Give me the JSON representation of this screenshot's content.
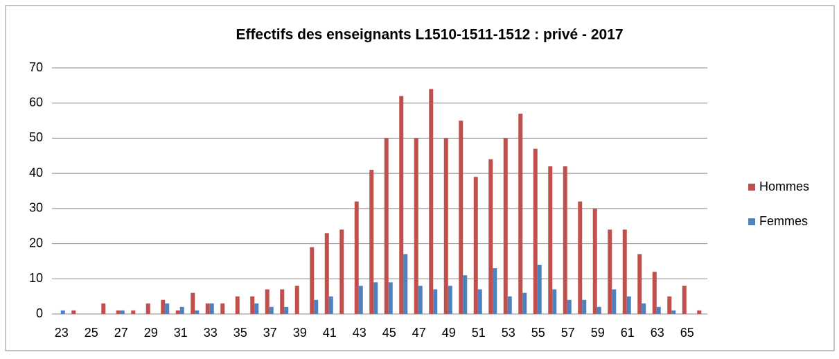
{
  "chart_data": {
    "type": "bar",
    "title": "Effectifs des enseignants L1510-1511-1512 : privé - 2017",
    "categories": [
      23,
      null,
      25,
      null,
      27,
      null,
      29,
      null,
      31,
      null,
      33,
      null,
      35,
      null,
      37,
      null,
      39,
      null,
      41,
      null,
      43,
      null,
      45,
      null,
      47,
      null,
      49,
      null,
      51,
      null,
      53,
      null,
      55,
      null,
      57,
      null,
      59,
      null,
      61,
      null,
      63,
      null,
      65,
      null
    ],
    "series": [
      {
        "name": "Hommes",
        "color": "#c0504d",
        "values": [
          0,
          1,
          0,
          3,
          1,
          1,
          3,
          4,
          1,
          6,
          3,
          3,
          5,
          5,
          7,
          7,
          8,
          19,
          23,
          24,
          32,
          41,
          50,
          62,
          50,
          64,
          50,
          55,
          39,
          44,
          50,
          57,
          47,
          42,
          42,
          32,
          30,
          24,
          24,
          17,
          12,
          5,
          8,
          1
        ]
      },
      {
        "name": "Femmes",
        "color": "#4f81bd",
        "values": [
          1,
          0,
          0,
          0,
          1,
          0,
          0,
          3,
          2,
          1,
          3,
          0,
          0,
          3,
          2,
          2,
          0,
          4,
          5,
          0,
          8,
          9,
          9,
          17,
          8,
          7,
          8,
          11,
          7,
          13,
          5,
          6,
          14,
          7,
          4,
          4,
          2,
          7,
          5,
          3,
          2,
          1,
          0,
          0
        ]
      }
    ],
    "ylim": [
      0,
      70
    ],
    "yticks": [
      0,
      10,
      20,
      30,
      40,
      50,
      60,
      70
    ],
    "grid": true,
    "legend": "right"
  }
}
